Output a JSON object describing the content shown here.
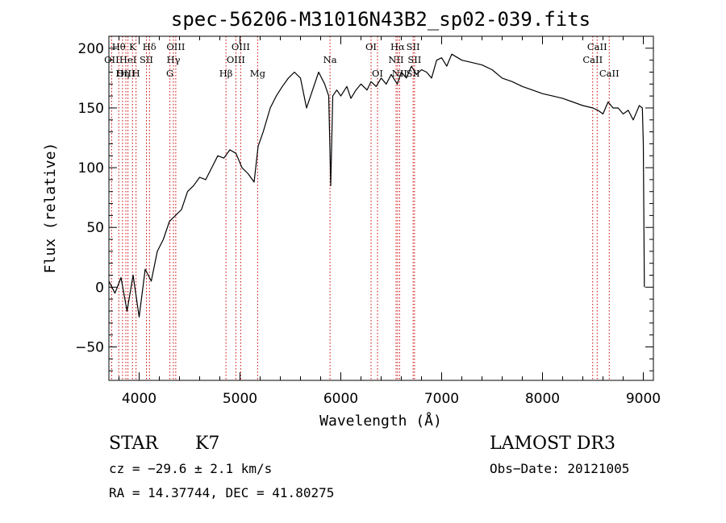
{
  "chart_data": {
    "type": "line",
    "title": "spec-56206-M31016N43B2_sp02-039.fits",
    "xlabel": "Wavelength (Å)",
    "ylabel": "Flux (relative)",
    "xlim": [
      3700,
      9100
    ],
    "ylim": [
      -78,
      210
    ],
    "x_ticks": [
      4000,
      5000,
      6000,
      7000,
      8000,
      9000
    ],
    "y_ticks": [
      -50,
      0,
      50,
      100,
      150,
      200
    ],
    "grid": false,
    "series": [
      {
        "name": "spectrum",
        "x": [
          3700,
          3760,
          3820,
          3880,
          3940,
          4000,
          4060,
          4120,
          4180,
          4240,
          4300,
          4360,
          4420,
          4480,
          4540,
          4600,
          4660,
          4720,
          4780,
          4840,
          4900,
          4960,
          5020,
          5080,
          5140,
          5180,
          5230,
          5300,
          5360,
          5420,
          5480,
          5540,
          5600,
          5660,
          5720,
          5780,
          5840,
          5880,
          5900,
          5920,
          5960,
          6000,
          6060,
          6100,
          6150,
          6200,
          6260,
          6300,
          6350,
          6400,
          6450,
          6500,
          6560,
          6600,
          6650,
          6700,
          6750,
          6800,
          6850,
          6900,
          6950,
          7000,
          7050,
          7100,
          7200,
          7300,
          7400,
          7500,
          7600,
          7700,
          7800,
          7900,
          8000,
          8100,
          8200,
          8300,
          8400,
          8500,
          8550,
          8600,
          8650,
          8700,
          8750,
          8800,
          8850,
          8900,
          8960,
          8990,
          9000,
          9010
        ],
        "values": [
          5,
          -5,
          8,
          -20,
          10,
          -25,
          15,
          5,
          30,
          40,
          55,
          60,
          65,
          80,
          85,
          92,
          90,
          100,
          110,
          108,
          115,
          112,
          100,
          95,
          88,
          118,
          130,
          150,
          160,
          168,
          175,
          180,
          175,
          150,
          165,
          180,
          170,
          160,
          85,
          160,
          165,
          160,
          168,
          158,
          165,
          170,
          165,
          172,
          168,
          175,
          170,
          178,
          170,
          180,
          175,
          185,
          178,
          182,
          180,
          175,
          190,
          192,
          185,
          195,
          190,
          188,
          186,
          182,
          175,
          172,
          168,
          165,
          162,
          160,
          158,
          155,
          152,
          150,
          148,
          145,
          155,
          150,
          150,
          145,
          148,
          140,
          152,
          150,
          120,
          0
        ]
      }
    ],
    "line_labels": [
      {
        "label": "Hθ",
        "wl": 3798,
        "row": 0
      },
      {
        "label": "OII",
        "wl": 3727,
        "row": 1
      },
      {
        "label": "OIII",
        "wl": 3868,
        "row": 2
      },
      {
        "label": "K",
        "wl": 3934,
        "row": 0
      },
      {
        "label": "HeI",
        "wl": 3889,
        "row": 1
      },
      {
        "label": "Hη",
        "wl": 3835,
        "row": 2
      },
      {
        "label": "H",
        "wl": 3969,
        "row": 2
      },
      {
        "label": "SII",
        "wl": 4072,
        "row": 1
      },
      {
        "label": "Hδ",
        "wl": 4102,
        "row": 0
      },
      {
        "label": "OIII",
        "wl": 4363,
        "row": 0
      },
      {
        "label": "Hγ",
        "wl": 4340,
        "row": 1
      },
      {
        "label": "G",
        "wl": 4305,
        "row": 2
      },
      {
        "label": "OIII",
        "wl": 5007,
        "row": 0
      },
      {
        "label": "OIII",
        "wl": 4959,
        "row": 1
      },
      {
        "label": "Hβ",
        "wl": 4861,
        "row": 2
      },
      {
        "label": "Mg",
        "wl": 5175,
        "row": 2
      },
      {
        "label": "Na",
        "wl": 5893,
        "row": 1
      },
      {
        "label": "OI",
        "wl": 6300,
        "row": 0
      },
      {
        "label": "OI",
        "wl": 6364,
        "row": 2
      },
      {
        "label": "Hα",
        "wl": 6563,
        "row": 0
      },
      {
        "label": "SII",
        "wl": 6717,
        "row": 0
      },
      {
        "label": "NII",
        "wl": 6548,
        "row": 1
      },
      {
        "label": "SII",
        "wl": 6731,
        "row": 1
      },
      {
        "label": "NII",
        "wl": 6583,
        "row": 2
      },
      {
        "label": "SII",
        "wl": 6717,
        "row": 2
      },
      {
        "label": "CaII",
        "wl": 8542,
        "row": 0
      },
      {
        "label": "CaII",
        "wl": 8498,
        "row": 1
      },
      {
        "label": "CaII",
        "wl": 8662,
        "row": 2
      }
    ],
    "line_marks": [
      3727,
      3798,
      3835,
      3868,
      3889,
      3934,
      3969,
      4072,
      4102,
      4305,
      4340,
      4363,
      4861,
      4959,
      5007,
      5175,
      5893,
      6300,
      6364,
      6548,
      6563,
      6583,
      6717,
      6731,
      8498,
      8542,
      8662
    ],
    "line_color": "#000000",
    "marker_color": "#cc0000"
  },
  "info": {
    "object_class": "STAR",
    "subclass": "K7",
    "survey": "LAMOST DR3",
    "cz": "cz = −29.6 ± 2.1 km/s",
    "obs_date": "Obs−Date: 20121005",
    "coords": "RA =  14.37744, DEC =  41.80275"
  }
}
